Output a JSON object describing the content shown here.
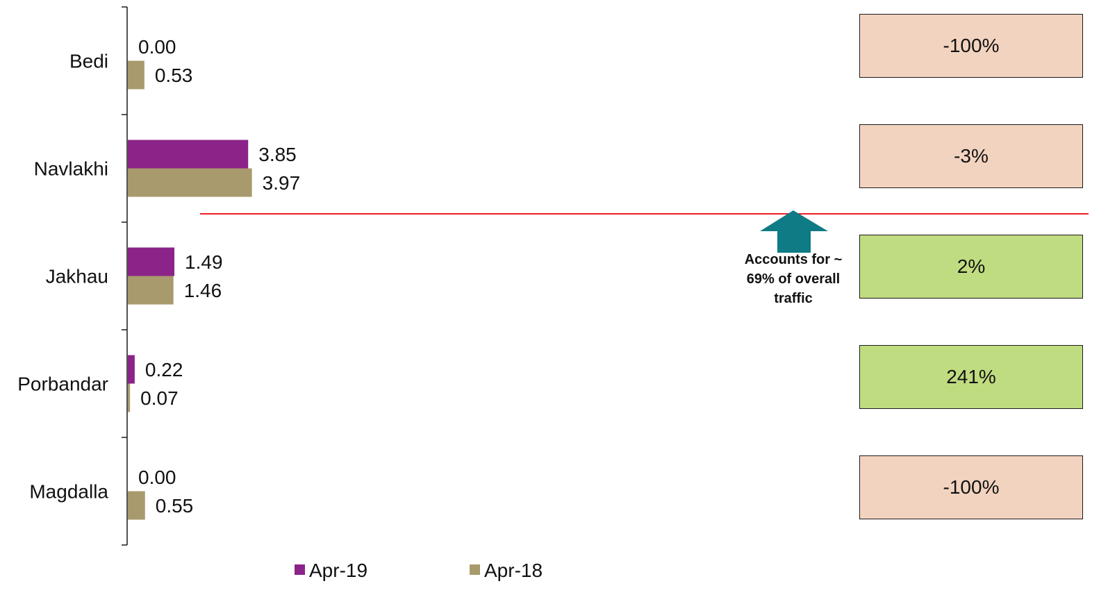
{
  "chart_data": {
    "type": "bar",
    "orientation": "horizontal",
    "categories": [
      "Bedi",
      "Navlakhi",
      "Jakhau",
      "Porbandar",
      "Magdalla"
    ],
    "series": [
      {
        "name": "Apr-19",
        "values": [
          0.0,
          3.85,
          1.49,
          0.22,
          0.0
        ],
        "labels": [
          "0.00",
          "3.85",
          "1.49",
          "0.22",
          "0.00"
        ]
      },
      {
        "name": "Apr-18",
        "values": [
          0.53,
          3.97,
          1.46,
          0.07,
          0.55
        ],
        "labels": [
          "0.53",
          "3.97",
          "1.46",
          "0.07",
          "0.55"
        ]
      }
    ],
    "legend_position": "bottom",
    "grid": false
  },
  "growth": [
    {
      "category": "Bedi",
      "text": "-100%",
      "status": "negative"
    },
    {
      "category": "Navlakhi",
      "text": "-3%",
      "status": "negative"
    },
    {
      "category": "Jakhau",
      "text": "2%",
      "status": "positive"
    },
    {
      "category": "Porbandar",
      "text": "241%",
      "status": "positive"
    },
    {
      "category": "Magdalla",
      "text": "-100%",
      "status": "negative"
    }
  ],
  "annotation": {
    "lines": [
      "Accounts for ~",
      "69% of overall",
      "traffic"
    ],
    "icon": "up-arrow-icon"
  },
  "colors": {
    "Apr-19": "#8b2389",
    "Apr-18": "#a89a6c",
    "negative": "#f2d3c0",
    "positive": "#c0dc80",
    "divider": "#ee1c24",
    "arrow": "#0e7b85",
    "axis": "#1a1a1a"
  }
}
